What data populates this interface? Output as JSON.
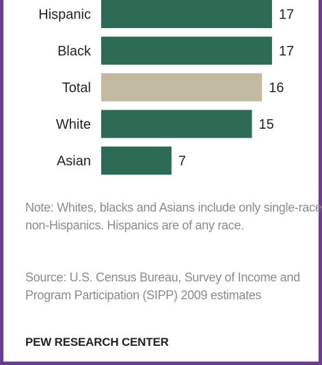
{
  "chart_data": {
    "type": "bar",
    "orientation": "horizontal",
    "categories": [
      "Hispanic",
      "Black",
      "Total",
      "White",
      "Asian"
    ],
    "values": [
      17,
      17,
      16,
      15,
      7
    ],
    "value_labels": [
      "17",
      "17",
      "16",
      "15",
      "7"
    ],
    "highlight_category": "Total",
    "colors": {
      "bar": "#2e6b55",
      "highlight_bar": "#c2baa0"
    },
    "grid": false,
    "legend": "none"
  },
  "footnotes": {
    "note": "Note: Whites, blacks and Asians include only single-race non-Hispanics. Hispanics are of any race.",
    "source": "Source: U.S. Census Bureau, Survey of Income and Program Participation (SIPP) 2009 estimates",
    "brand": "PEW RESEARCH CENTER"
  }
}
